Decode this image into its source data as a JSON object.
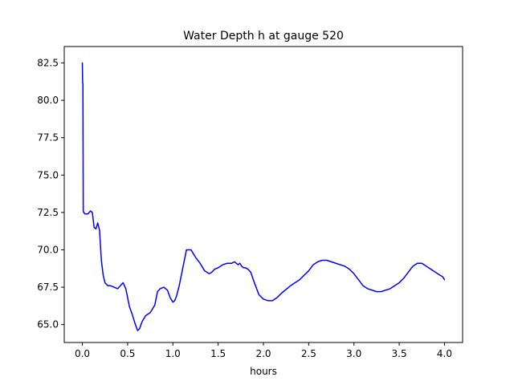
{
  "chart_data": {
    "type": "line",
    "title": "Water Depth h at gauge 520",
    "xlabel": "hours",
    "ylabel": "",
    "xlim": [
      -0.2,
      4.2
    ],
    "ylim": [
      63.8,
      83.6
    ],
    "xticks": [
      0.0,
      0.5,
      1.0,
      1.5,
      2.0,
      2.5,
      3.0,
      3.5,
      4.0
    ],
    "xtick_labels": [
      "0.0",
      "0.5",
      "1.0",
      "1.5",
      "2.0",
      "2.5",
      "3.0",
      "3.5",
      "4.0"
    ],
    "yticks": [
      65.0,
      67.5,
      70.0,
      72.5,
      75.0,
      77.5,
      80.0,
      82.5
    ],
    "ytick_labels": [
      "65.0",
      "67.5",
      "70.0",
      "72.5",
      "75.0",
      "77.5",
      "80.0",
      "82.5"
    ],
    "grid": false,
    "series": [
      {
        "color": "#0000ff",
        "x": [
          0.0,
          0.003,
          0.006,
          0.01,
          0.015,
          0.03,
          0.06,
          0.09,
          0.11,
          0.13,
          0.15,
          0.17,
          0.19,
          0.21,
          0.23,
          0.25,
          0.28,
          0.31,
          0.35,
          0.39,
          0.42,
          0.45,
          0.48,
          0.5,
          0.52,
          0.55,
          0.58,
          0.61,
          0.63,
          0.66,
          0.7,
          0.75,
          0.8,
          0.83,
          0.86,
          0.9,
          0.94,
          0.97,
          1.0,
          1.02,
          1.04,
          1.07,
          1.1,
          1.15,
          1.2,
          1.25,
          1.3,
          1.35,
          1.4,
          1.43,
          1.46,
          1.5,
          1.55,
          1.6,
          1.65,
          1.68,
          1.7,
          1.72,
          1.74,
          1.76,
          1.78,
          1.8,
          1.83,
          1.86,
          1.9,
          1.95,
          2.0,
          2.05,
          2.1,
          2.15,
          2.2,
          2.3,
          2.4,
          2.5,
          2.55,
          2.6,
          2.65,
          2.7,
          2.8,
          2.9,
          2.95,
          3.0,
          3.05,
          3.1,
          3.15,
          3.2,
          3.25,
          3.3,
          3.4,
          3.5,
          3.55,
          3.6,
          3.65,
          3.7,
          3.75,
          3.8,
          3.9,
          3.95,
          3.98,
          4.0
        ],
        "y": [
          82.5,
          81.2,
          81.1,
          72.6,
          72.5,
          72.4,
          72.4,
          72.6,
          72.5,
          71.5,
          71.4,
          71.8,
          71.3,
          69.3,
          68.3,
          67.8,
          67.6,
          67.6,
          67.5,
          67.4,
          67.6,
          67.8,
          67.4,
          66.8,
          66.2,
          65.7,
          65.1,
          64.6,
          64.7,
          65.2,
          65.6,
          65.8,
          66.3,
          67.2,
          67.4,
          67.5,
          67.3,
          66.8,
          66.5,
          66.6,
          66.9,
          67.6,
          68.5,
          70.0,
          70.0,
          69.5,
          69.1,
          68.6,
          68.4,
          68.5,
          68.7,
          68.8,
          69.0,
          69.1,
          69.1,
          69.2,
          69.1,
          69.0,
          69.1,
          68.9,
          68.8,
          68.8,
          68.7,
          68.5,
          67.8,
          67.0,
          66.7,
          66.6,
          66.6,
          66.8,
          67.1,
          67.6,
          68.0,
          68.6,
          69.0,
          69.2,
          69.3,
          69.3,
          69.1,
          68.9,
          68.7,
          68.4,
          68.0,
          67.6,
          67.4,
          67.3,
          67.2,
          67.2,
          67.4,
          67.8,
          68.1,
          68.5,
          68.9,
          69.1,
          69.1,
          68.9,
          68.5,
          68.3,
          68.2,
          68.0
        ]
      }
    ]
  }
}
